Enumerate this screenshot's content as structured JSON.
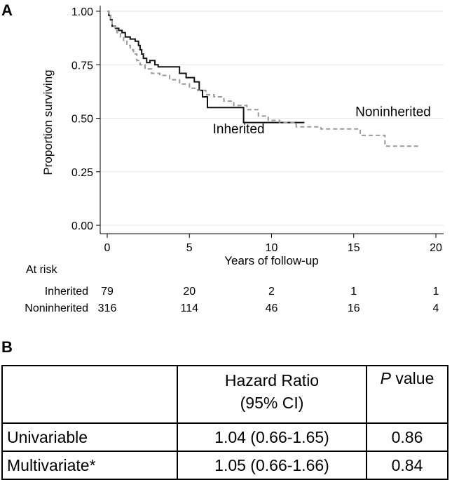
{
  "panel_a_label": "A",
  "panel_b_label": "B",
  "chart_data": {
    "type": "line",
    "title": "",
    "xlabel": "Years of follow-up",
    "ylabel": "Proportion surviving",
    "xlim": [
      0,
      20
    ],
    "ylim": [
      0,
      1
    ],
    "xticks": [
      0,
      5,
      10,
      15,
      20
    ],
    "yticks": [
      "0.00",
      "0.25",
      "0.50",
      "0.75",
      "1.00"
    ],
    "grid": true,
    "legend": "none",
    "series": [
      {
        "name": "Inherited",
        "style": "solid-step",
        "color": "#111111",
        "x": [
          0,
          0.1,
          0.2,
          0.3,
          0.5,
          0.7,
          0.9,
          1.1,
          1.4,
          1.7,
          1.9,
          2.0,
          2.1,
          2.2,
          2.4,
          2.6,
          2.9,
          3.1,
          4.4,
          4.8,
          5.3,
          5.6,
          5.8,
          6.1,
          8.3,
          12.0
        ],
        "y": [
          1.0,
          0.98,
          0.96,
          0.93,
          0.92,
          0.91,
          0.9,
          0.88,
          0.87,
          0.86,
          0.84,
          0.82,
          0.8,
          0.78,
          0.76,
          0.77,
          0.75,
          0.74,
          0.71,
          0.69,
          0.67,
          0.63,
          0.6,
          0.55,
          0.48,
          0.48
        ]
      },
      {
        "name": "Noninherited",
        "style": "dashed-step",
        "color": "#999999",
        "x": [
          0,
          0.1,
          0.2,
          0.3,
          0.4,
          0.5,
          0.6,
          0.8,
          1.0,
          1.2,
          1.4,
          1.6,
          1.8,
          2.0,
          2.3,
          2.7,
          3.2,
          3.8,
          4.4,
          5.0,
          5.5,
          6.0,
          6.5,
          7.1,
          7.7,
          8.5,
          9.2,
          9.8,
          10.5,
          11.5,
          13.0,
          15.4,
          16.9,
          19.1
        ],
        "y": [
          1.0,
          0.98,
          0.96,
          0.94,
          0.93,
          0.91,
          0.9,
          0.88,
          0.86,
          0.84,
          0.82,
          0.8,
          0.77,
          0.75,
          0.73,
          0.71,
          0.7,
          0.68,
          0.66,
          0.64,
          0.63,
          0.61,
          0.6,
          0.58,
          0.56,
          0.54,
          0.51,
          0.49,
          0.48,
          0.46,
          0.45,
          0.42,
          0.37,
          0.37
        ]
      }
    ],
    "annotations": [
      {
        "text": "Inherited",
        "x": 8.0,
        "y": 0.43
      },
      {
        "text": "Noninherited",
        "x": 17.4,
        "y": 0.51
      }
    ],
    "at_risk": {
      "title": "At risk",
      "times": [
        0,
        5,
        10,
        15,
        20
      ],
      "rows": [
        {
          "label": "Inherited",
          "counts": [
            "79",
            "20",
            "2",
            "1",
            "1"
          ]
        },
        {
          "label": "Noninherited",
          "counts": [
            "316",
            "114",
            "46",
            "16",
            "4"
          ]
        }
      ]
    }
  },
  "table": {
    "header": {
      "blank": "",
      "hazard_line1": "Hazard Ratio",
      "hazard_line2": "(95% CI)",
      "p_italic": "P",
      "p_rest": " value"
    },
    "rows": [
      {
        "label": "Univariable",
        "hr": "1.04 (0.66-1.65)",
        "p": "0.86"
      },
      {
        "label": "Multivariate*",
        "hr": "1.05 (0.66-1.66)",
        "p": "0.84"
      }
    ]
  }
}
